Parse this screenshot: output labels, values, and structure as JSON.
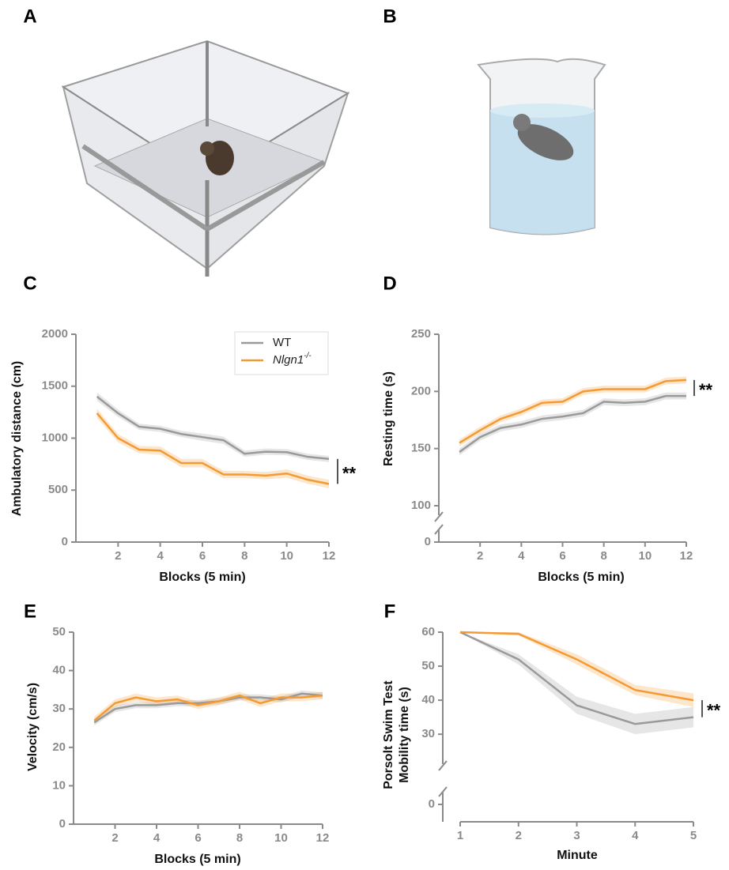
{
  "panel_labels": [
    "A",
    "B",
    "C",
    "D",
    "E",
    "F"
  ],
  "chart_data": [
    {
      "type": "line",
      "xlabel": "Blocks (5 min)",
      "ylabel": [
        "Ambulatory distance (cm)"
      ],
      "x": [
        1,
        2,
        3,
        4,
        5,
        6,
        7,
        8,
        9,
        10,
        11,
        12
      ],
      "xlim": [
        0,
        12
      ],
      "xticks": [
        2,
        4,
        6,
        8,
        10,
        12
      ],
      "ylim": [
        0,
        2000
      ],
      "yticks": [
        0,
        500,
        1000,
        1500,
        2000
      ],
      "legend": "upper right",
      "significance": "**",
      "series": [
        {
          "name": "WT",
          "color": "#9a9a9a",
          "values": [
            1400,
            1240,
            1110,
            1090,
            1040,
            1010,
            980,
            850,
            870,
            865,
            820,
            800
          ],
          "errors": [
            40,
            35,
            30,
            30,
            30,
            35,
            35,
            30,
            30,
            30,
            30,
            30
          ]
        },
        {
          "name": "Nlgn1",
          "name_superscript": "-/-",
          "italic_name": true,
          "color": "#f39a34",
          "values": [
            1240,
            1000,
            890,
            880,
            760,
            760,
            650,
            650,
            640,
            660,
            600,
            560
          ],
          "errors": [
            45,
            40,
            35,
            40,
            40,
            40,
            35,
            35,
            35,
            40,
            40,
            40
          ]
        }
      ]
    },
    {
      "type": "line",
      "xlabel": "Blocks (5 min)",
      "ylabel": [
        "Resting time (s)"
      ],
      "x": [
        1,
        2,
        3,
        4,
        5,
        6,
        7,
        8,
        9,
        10,
        11,
        12
      ],
      "xlim": [
        0,
        12
      ],
      "xticks": [
        2,
        4,
        6,
        8,
        10,
        12
      ],
      "ylim": [
        100,
        250
      ],
      "yticks": [
        100,
        150,
        200,
        250
      ],
      "break_tick": 0,
      "significance": "**",
      "series": [
        {
          "name": "WT",
          "color": "#9a9a9a",
          "values": [
            147,
            160,
            168,
            171,
            176,
            178,
            181,
            191,
            190,
            191,
            196,
            196
          ],
          "errors": [
            3,
            3,
            3,
            3,
            3,
            3,
            3,
            3,
            3,
            3,
            3,
            3
          ]
        },
        {
          "name": "Nlgn1",
          "color": "#f39a34",
          "values": [
            155,
            166,
            176,
            182,
            190,
            191,
            200,
            202,
            202,
            202,
            209,
            210
          ],
          "errors": [
            3,
            3,
            3,
            3,
            3,
            3,
            3,
            3,
            3,
            3,
            3,
            3
          ]
        }
      ]
    },
    {
      "type": "line",
      "xlabel": "Blocks (5 min)",
      "ylabel": [
        "Velocity (cm/s)"
      ],
      "x": [
        1,
        2,
        3,
        4,
        5,
        6,
        7,
        8,
        9,
        10,
        11,
        12
      ],
      "xlim": [
        0,
        12
      ],
      "xticks": [
        2,
        4,
        6,
        8,
        10,
        12
      ],
      "ylim": [
        0,
        50
      ],
      "yticks": [
        0,
        10,
        20,
        30,
        40,
        50
      ],
      "series": [
        {
          "name": "WT",
          "color": "#9a9a9a",
          "values": [
            26.5,
            30,
            31,
            31,
            31.5,
            31.5,
            32,
            33,
            33,
            32.5,
            34,
            33.5
          ],
          "errors": [
            0.8,
            0.8,
            0.8,
            0.8,
            0.8,
            0.8,
            0.8,
            0.8,
            0.8,
            0.8,
            0.8,
            0.8
          ]
        },
        {
          "name": "Nlgn1",
          "color": "#f39a34",
          "values": [
            27,
            31.5,
            33,
            32,
            32.5,
            31,
            32,
            33.5,
            31.5,
            33,
            33,
            33.5
          ],
          "errors": [
            1,
            1,
            1,
            1,
            1,
            1,
            1,
            1,
            1,
            1,
            1,
            1
          ]
        }
      ]
    },
    {
      "type": "line",
      "xlabel": "Minute",
      "ylabel": [
        "Porsolt Swim Test",
        "Mobility time (s)"
      ],
      "x": [
        1,
        2,
        3,
        4,
        5
      ],
      "xlim": [
        1,
        5
      ],
      "xticks": [
        1,
        2,
        3,
        4,
        5
      ],
      "ylim": [
        24,
        60
      ],
      "yticks": [
        30,
        40,
        50,
        60
      ],
      "break_tick": 0,
      "significance": "**",
      "series": [
        {
          "name": "WT",
          "color": "#9a9a9a",
          "values": [
            60,
            52,
            38.5,
            33,
            35
          ],
          "errors": [
            0,
            1.5,
            2.5,
            3,
            3
          ]
        },
        {
          "name": "Nlgn1",
          "color": "#f39a34",
          "values": [
            60,
            59.5,
            52,
            43,
            40
          ],
          "errors": [
            0,
            0.5,
            1.5,
            1.5,
            2
          ]
        }
      ]
    }
  ]
}
